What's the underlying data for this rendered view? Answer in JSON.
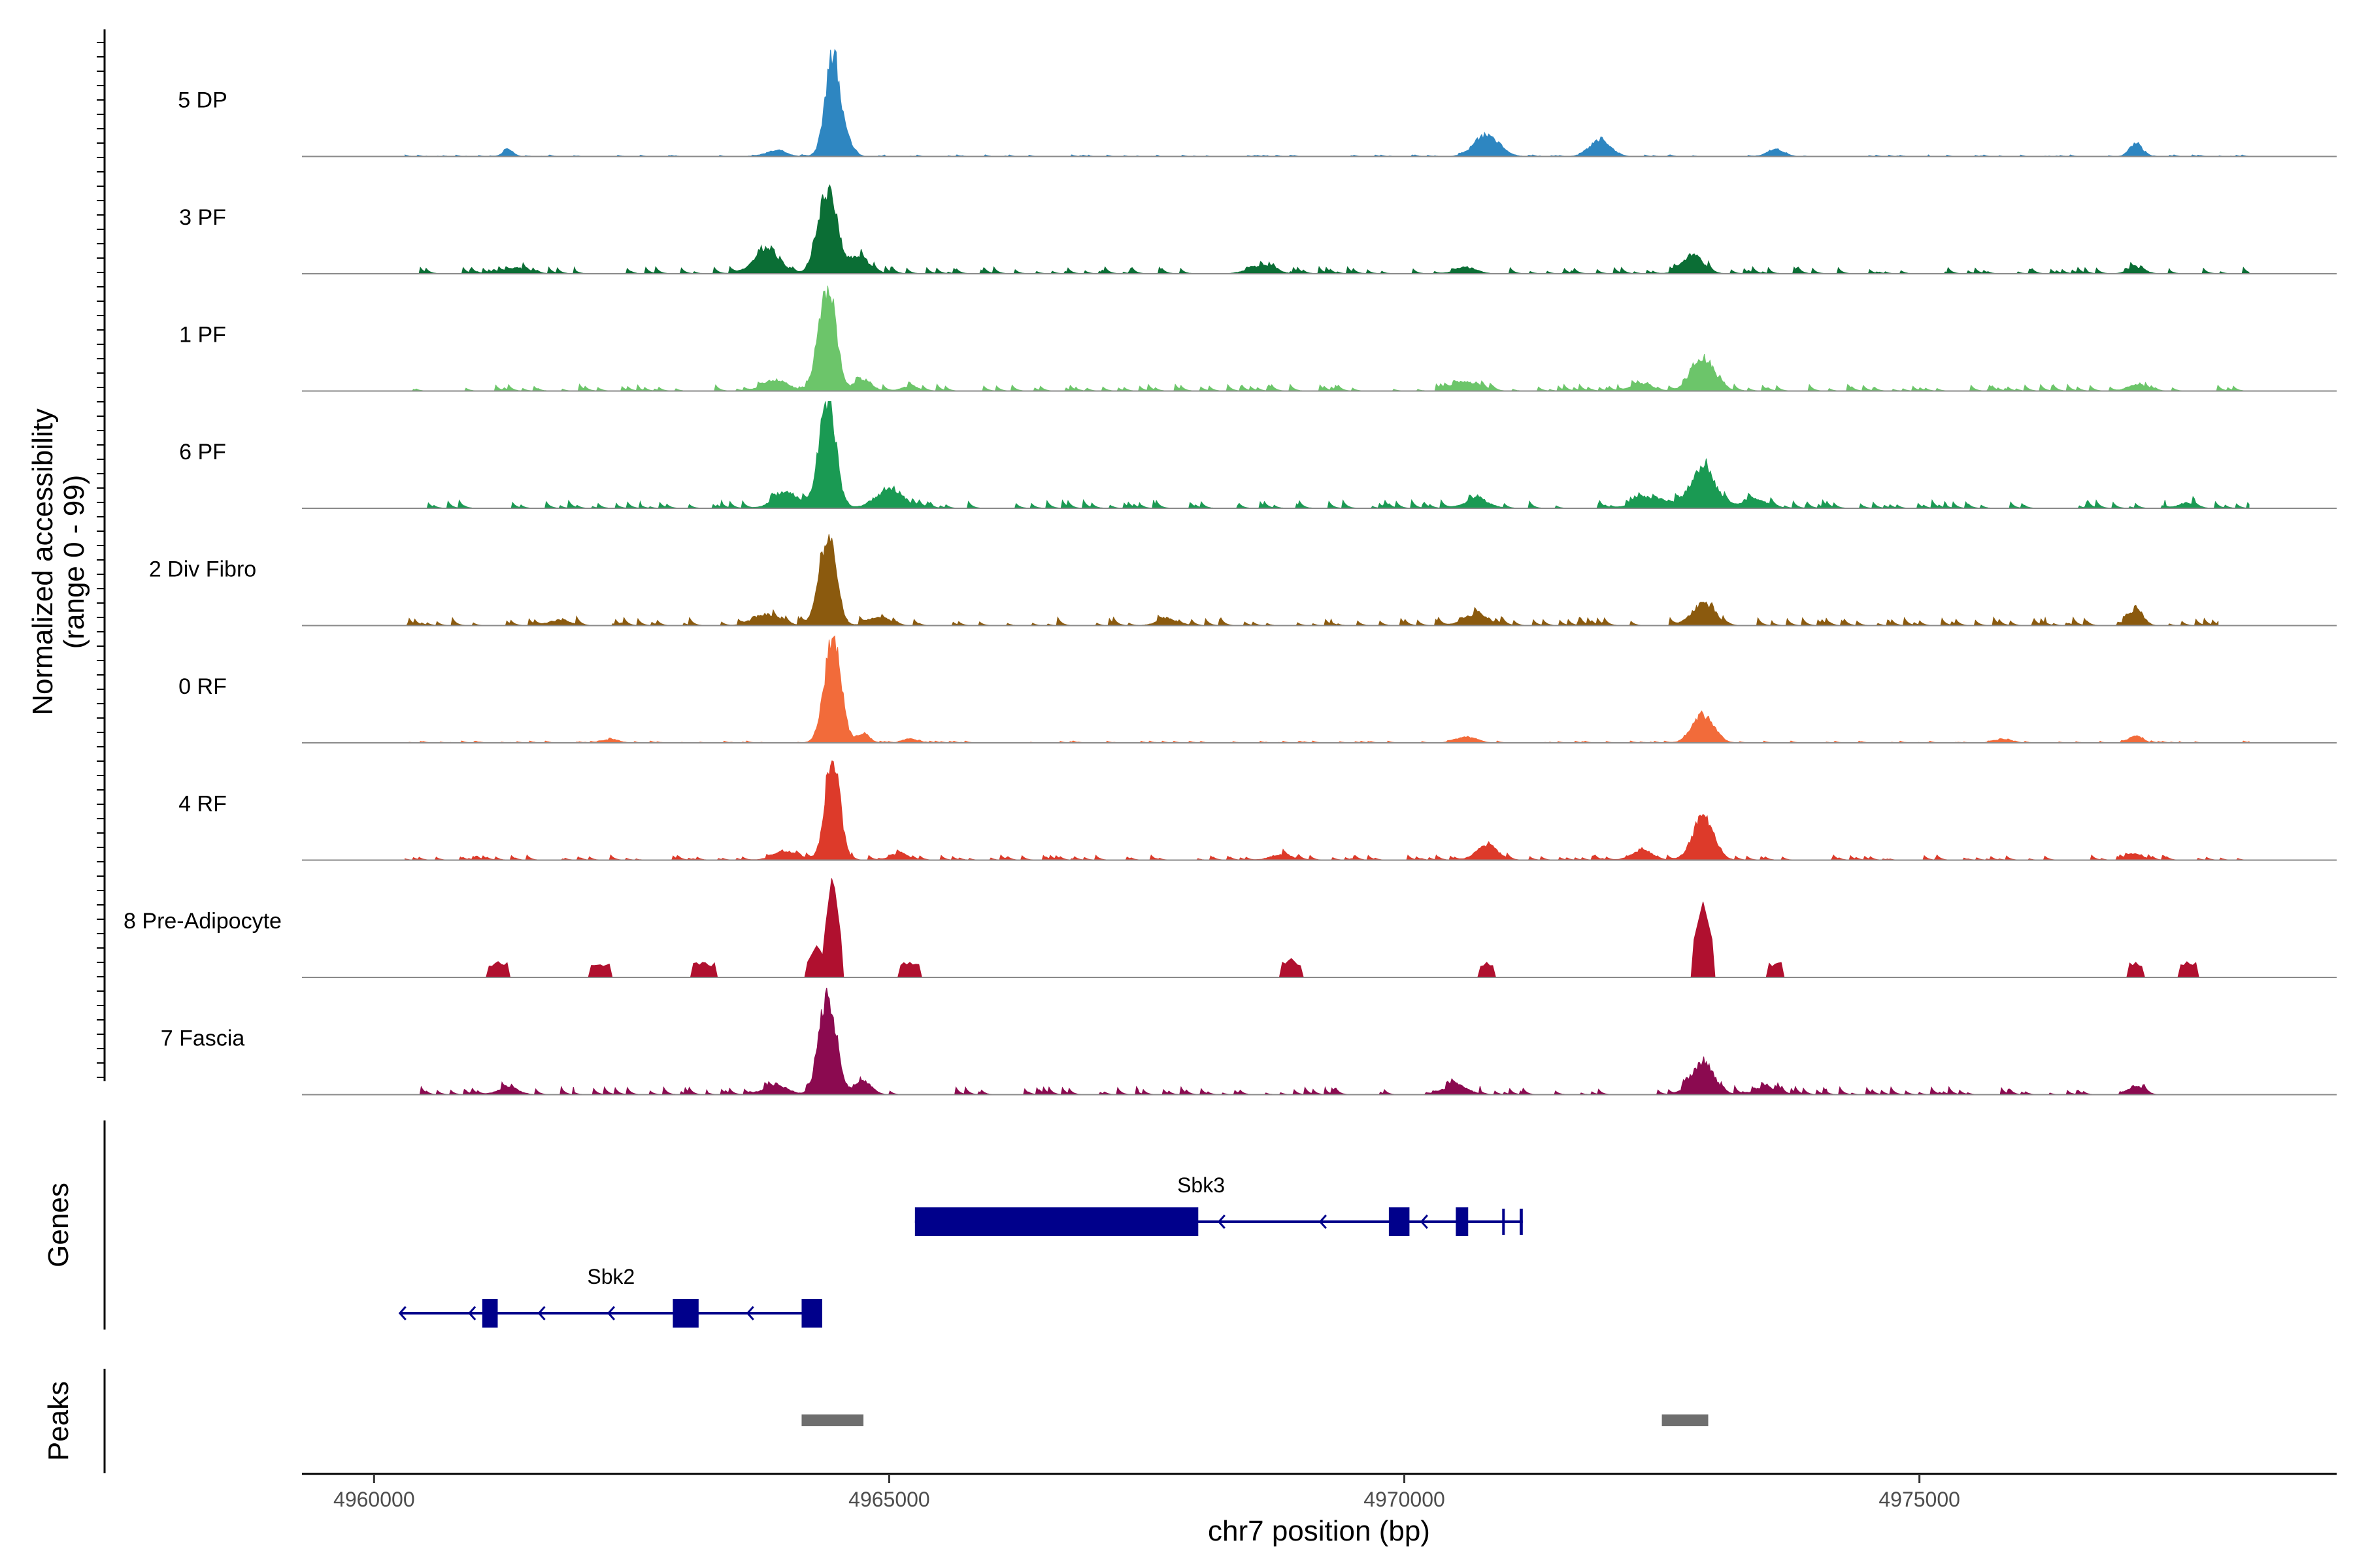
{
  "chart_data": {
    "type": "coverage",
    "xlabel": "chr7 position (bp)",
    "ylabel_line1": "Normalized accessibility",
    "ylabel_line2": "(range 0 - 99)",
    "ylim": [
      0,
      99
    ],
    "xlim": [
      4959300,
      4979050
    ],
    "x_ticks": [
      4960000,
      4965000,
      4970000,
      4975000
    ],
    "x_tick_labels": [
      "4960000",
      "4965000",
      "4970000",
      "4975000"
    ],
    "tracks": [
      {
        "label": "5 DP",
        "color": "#2E86C1",
        "range": [
          4960300,
          4978200
        ],
        "base": 0.3,
        "noise": 0.5,
        "sparse": false,
        "peaks": [
          [
            4964450,
            95,
            70
          ],
          [
            4964600,
            12,
            60
          ],
          [
            4970800,
            20,
            120
          ],
          [
            4971900,
            15,
            100
          ],
          [
            4961300,
            6,
            50
          ],
          [
            4977100,
            12,
            60
          ],
          [
            4973600,
            6,
            80
          ],
          [
            4963900,
            5,
            100
          ]
        ]
      },
      {
        "label": "3 PF",
        "color": "#0B6E35",
        "range": [
          4960200,
          4978200
        ],
        "base": 1.5,
        "noise": 2,
        "sparse": false,
        "peaks": [
          [
            4964400,
            75,
            90
          ],
          [
            4963800,
            22,
            120
          ],
          [
            4964700,
            15,
            100
          ],
          [
            4972800,
            16,
            100
          ],
          [
            4968600,
            7,
            120
          ],
          [
            4970600,
            6,
            100
          ],
          [
            4977100,
            5,
            80
          ],
          [
            4961400,
            5,
            100
          ]
        ]
      },
      {
        "label": "1 PF",
        "color": "#6CC56A",
        "range": [
          4960300,
          4978200
        ],
        "base": 1.5,
        "noise": 2,
        "sparse": false,
        "peaks": [
          [
            4964400,
            98,
            80
          ],
          [
            4963900,
            10,
            120
          ],
          [
            4964750,
            10,
            80
          ],
          [
            4972900,
            30,
            110
          ],
          [
            4970600,
            8,
            120
          ],
          [
            4972300,
            6,
            100
          ],
          [
            4977100,
            6,
            80
          ],
          [
            4965200,
            4,
            80
          ]
        ]
      },
      {
        "label": "6 PF",
        "color": "#1A9A53",
        "range": [
          4960500,
          4978200
        ],
        "base": 1.5,
        "noise": 2.5,
        "sparse": false,
        "peaks": [
          [
            4964400,
            100,
            80
          ],
          [
            4964000,
            15,
            120
          ],
          [
            4965000,
            16,
            140
          ],
          [
            4972900,
            36,
            120
          ],
          [
            4972400,
            10,
            150
          ],
          [
            4973400,
            8,
            120
          ],
          [
            4970700,
            8,
            120
          ],
          [
            4977600,
            5,
            80
          ]
        ]
      },
      {
        "label": "2 Div Fibro",
        "color": "#8B5A0E",
        "range": [
          4960300,
          4977900
        ],
        "base": 1.5,
        "noise": 2.5,
        "sparse": false,
        "peaks": [
          [
            4964400,
            80,
            80
          ],
          [
            4963800,
            10,
            120
          ],
          [
            4964900,
            8,
            100
          ],
          [
            4972900,
            20,
            110
          ],
          [
            4970700,
            10,
            120
          ],
          [
            4977100,
            14,
            70
          ],
          [
            4967700,
            6,
            100
          ],
          [
            4961800,
            5,
            100
          ]
        ]
      },
      {
        "label": "0 RF",
        "color": "#F26B3A",
        "range": [
          4960300,
          4978200
        ],
        "base": 0.3,
        "noise": 0.6,
        "sparse": false,
        "peaks": [
          [
            4964450,
            95,
            80
          ],
          [
            4964750,
            8,
            60
          ],
          [
            4972900,
            26,
            100
          ],
          [
            4970600,
            5,
            100
          ],
          [
            4977100,
            7,
            60
          ],
          [
            4965200,
            4,
            60
          ],
          [
            4962300,
            3,
            80
          ],
          [
            4975800,
            3,
            80
          ]
        ]
      },
      {
        "label": "4 RF",
        "color": "#DD3A2A",
        "range": [
          4960300,
          4978200
        ],
        "base": 1,
        "noise": 1.5,
        "sparse": false,
        "peaks": [
          [
            4964450,
            98,
            70
          ],
          [
            4964000,
            8,
            120
          ],
          [
            4965100,
            6,
            80
          ],
          [
            4972900,
            40,
            100
          ],
          [
            4970800,
            14,
            100
          ],
          [
            4972300,
            8,
            100
          ],
          [
            4977100,
            6,
            70
          ],
          [
            4968800,
            5,
            100
          ]
        ]
      },
      {
        "label": "8 Pre-Adipocyte",
        "color": "#B0102F",
        "range": [
          4960300,
          4977800
        ],
        "base": 0,
        "noise": 0,
        "sparse": true,
        "peaks": [
          [
            4964450,
            98,
            60
          ],
          [
            4964300,
            30,
            80
          ],
          [
            4972900,
            70,
            80
          ],
          [
            4961200,
            15,
            80
          ],
          [
            4962200,
            12,
            80
          ],
          [
            4963200,
            15,
            80
          ],
          [
            4965200,
            14,
            80
          ],
          [
            4968900,
            18,
            80
          ],
          [
            4970800,
            14,
            60
          ],
          [
            4977100,
            14,
            60
          ],
          [
            4977600,
            15,
            60
          ],
          [
            4973600,
            8,
            60
          ]
        ]
      },
      {
        "label": "7 Fascia",
        "color": "#8B0A50",
        "range": [
          4960300,
          4977300
        ],
        "base": 1.5,
        "noise": 2.5,
        "sparse": false,
        "peaks": [
          [
            4964400,
            90,
            80
          ],
          [
            4964750,
            12,
            80
          ],
          [
            4963900,
            8,
            120
          ],
          [
            4972900,
            28,
            110
          ],
          [
            4970500,
            8,
            120
          ],
          [
            4977100,
            8,
            70
          ],
          [
            4961300,
            6,
            100
          ],
          [
            4973500,
            6,
            100
          ]
        ]
      }
    ],
    "genes": [
      {
        "name": "Sbk3",
        "strand": "-",
        "start": 4965250,
        "end": 4971150,
        "exons": [
          [
            4965250,
            4968000
          ],
          [
            4969850,
            4970050
          ],
          [
            4970500,
            4970620
          ],
          [
            4970950,
            4970970
          ],
          [
            4971120,
            4971150
          ]
        ]
      },
      {
        "name": "Sbk2",
        "strand": "-",
        "start": 4960250,
        "end": 4964300,
        "exons": [
          [
            4961050,
            4961200
          ],
          [
            4962900,
            4963150
          ],
          [
            4964150,
            4964350
          ]
        ]
      }
    ],
    "gene_color": "#00008B",
    "genes_label": "Genes",
    "peaks_label": "Peaks",
    "peak_regions": [
      [
        4964150,
        4964750
      ],
      [
        4972500,
        4972950
      ]
    ],
    "peak_color": "#6E6E6E"
  }
}
